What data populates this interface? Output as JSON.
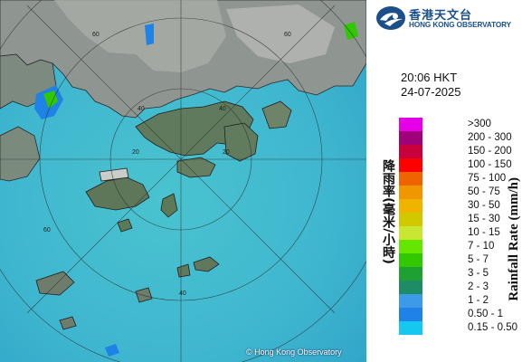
{
  "header": {
    "org_name_cn": "香港天文台",
    "org_name_en": "HONG KONG OBSERVATORY"
  },
  "timestamp": {
    "time": "20:06 HKT",
    "date": "24-07-2025"
  },
  "legend": {
    "unit_cn": "降雨率(毫米/小時)",
    "unit_en": "Rainfall Rate (mm/h)",
    "items": [
      {
        "label": ">300",
        "color": "#e600e6"
      },
      {
        "label": "200 - 300",
        "color": "#a0007a"
      },
      {
        "label": "150 - 200",
        "color": "#c8003c"
      },
      {
        "label": "100 - 150",
        "color": "#ff0000"
      },
      {
        "label": "75 - 100",
        "color": "#f06400"
      },
      {
        "label": "50 - 75",
        "color": "#f09600"
      },
      {
        "label": "30 - 50",
        "color": "#f0b400"
      },
      {
        "label": "15 - 30",
        "color": "#d2c800"
      },
      {
        "label": "10 - 15",
        "color": "#c8e632"
      },
      {
        "label": "7 - 10",
        "color": "#64e600"
      },
      {
        "label": "5 - 7",
        "color": "#32c800"
      },
      {
        "label": "3 - 5",
        "color": "#1ea032"
      },
      {
        "label": "2 - 3",
        "color": "#1e8c64"
      },
      {
        "label": "1 - 2",
        "color": "#3c9ae8"
      },
      {
        "label": "0.50 - 1",
        "color": "#1e82e6"
      },
      {
        "label": "0.15 - 0.50",
        "color": "#14c8f0"
      }
    ]
  },
  "map": {
    "range_ring_labels": [
      "60",
      "60",
      "40",
      "40",
      "20",
      "20",
      "60",
      "40"
    ],
    "copyright": "© Hong Kong Observatory"
  }
}
